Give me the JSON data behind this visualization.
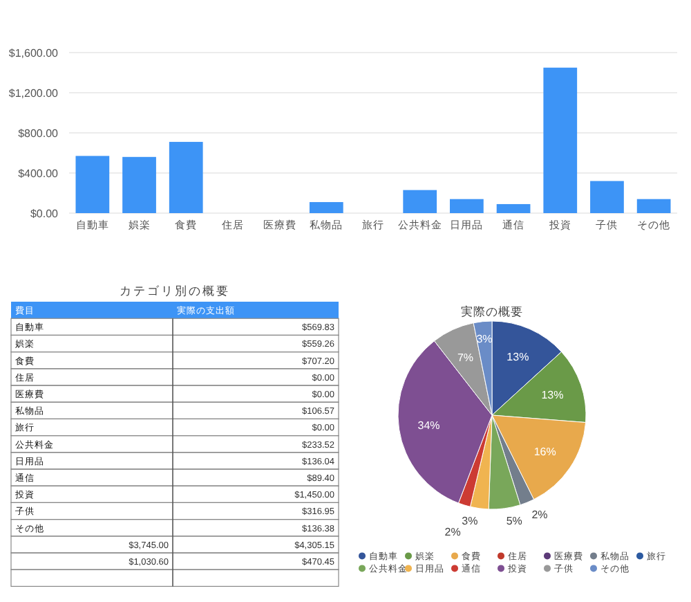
{
  "chart_data": [
    {
      "type": "bar",
      "categories": [
        "自動車",
        "娯楽",
        "食費",
        "住居",
        "医療費",
        "私物品",
        "旅行",
        "公共料金",
        "日用品",
        "通信",
        "投資",
        "子供",
        "その他"
      ],
      "values": [
        570,
        560,
        710,
        0,
        0,
        110,
        0,
        230,
        140,
        90,
        1450,
        320,
        140
      ],
      "color": "#3d94f6",
      "ylim": [
        0,
        1600
      ],
      "yticks": [
        {
          "value": 0,
          "label": "$0.00"
        },
        {
          "value": 400,
          "label": "$400.00"
        },
        {
          "value": 800,
          "label": "$800.00"
        },
        {
          "value": 1200,
          "label": "$1,200.00"
        },
        {
          "value": 1600,
          "label": "$1,600.00"
        }
      ],
      "grid": "y"
    },
    {
      "type": "other",
      "title": "カテゴリ別の概要",
      "categories": [
        "自動車",
        "娯楽",
        "食費",
        "住居",
        "医療費",
        "私物品",
        "旅行",
        "公共料金",
        "日用品",
        "通信",
        "投資",
        "子供",
        "その他"
      ],
      "values": [
        569.83,
        559.26,
        707.2,
        0,
        0,
        106.57,
        0,
        233.52,
        136.04,
        89.4,
        1450.0,
        316.95,
        136.38
      ],
      "value_labels": [
        "$569.83",
        "$559.26",
        "$707.20",
        "$0.00",
        "$0.00",
        "$106.57",
        "$0.00",
        "$233.52",
        "$136.04",
        "$89.40",
        "$1,450.00",
        "$316.95",
        "$136.38"
      ],
      "annotations": [
        "費目",
        "実際の支出額",
        "$3,745.00",
        "$4,305.15",
        "$1,030.60",
        "$470.45"
      ]
    },
    {
      "type": "pie",
      "title": "実際の概要",
      "categories": [
        "自動車",
        "娯楽",
        "食費",
        "住居",
        "医療費",
        "私物品",
        "旅行",
        "公共料金",
        "日用品",
        "通信",
        "投資",
        "子供",
        "その他"
      ],
      "values": [
        13.24,
        12.99,
        16.43,
        0,
        0,
        2.48,
        0,
        5.42,
        3.16,
        2.08,
        33.68,
        7.36,
        3.16
      ],
      "value_labels": [
        "13%",
        "13%",
        "16%",
        null,
        null,
        "2%",
        null,
        "5%",
        "3%",
        "2%",
        "34%",
        "7%",
        "3%"
      ],
      "colors": [
        "#34559a",
        "#6a9a48",
        "#e8a94c",
        "#c0392b",
        "#5c3a78",
        "#737e8c",
        "#2c5aa0",
        "#79a75a",
        "#f0b450",
        "#cc3b33",
        "#7e4f92",
        "#999999",
        "#6a8cc7"
      ],
      "legend": "bottom"
    }
  ]
}
